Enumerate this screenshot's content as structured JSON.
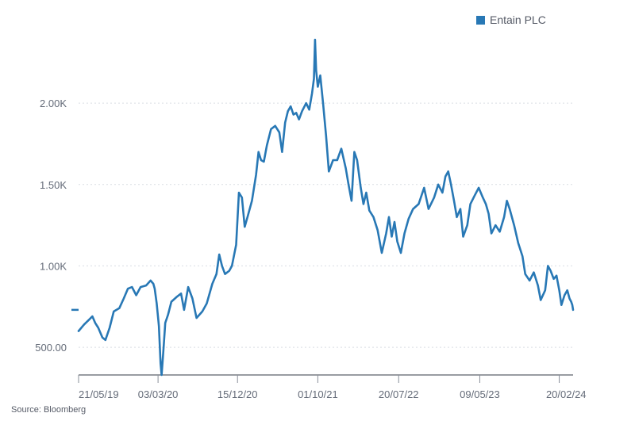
{
  "colors": {
    "series": "#2878b5",
    "price_marker": "#2878b5"
  },
  "legend": {
    "label": "Entain PLC"
  },
  "source": "Source: Bloomberg",
  "chart_data": {
    "type": "line",
    "title": "",
    "xlabel": "",
    "ylabel": "",
    "legend_position": "top-right",
    "grid": "horizontal-dotted",
    "ylim": [
      330,
      2390
    ],
    "yticks": [
      {
        "value": 500,
        "label": "500.00"
      },
      {
        "value": 1000,
        "label": "1.00K"
      },
      {
        "value": 1500,
        "label": "1.50K"
      },
      {
        "value": 2000,
        "label": "2.00K"
      }
    ],
    "xlim": [
      "2019-05-21",
      "2024-04-10"
    ],
    "xticks": [
      {
        "value": "2019-05-21",
        "label": "21/05/19"
      },
      {
        "value": "2020-03-03",
        "label": "03/03/20"
      },
      {
        "value": "2020-12-15",
        "label": "15/12/20"
      },
      {
        "value": "2021-10-01",
        "label": "01/10/21"
      },
      {
        "value": "2022-07-20",
        "label": "20/07/22"
      },
      {
        "value": "2023-05-09",
        "label": "09/05/23"
      },
      {
        "value": "2024-02-20",
        "label": "20/02/24"
      }
    ],
    "last_price_marker": 730,
    "series": [
      {
        "name": "Entain PLC",
        "points": [
          [
            "2019-05-21",
            600
          ],
          [
            "2019-06-10",
            640
          ],
          [
            "2019-06-28",
            670
          ],
          [
            "2019-07-10",
            690
          ],
          [
            "2019-07-20",
            650
          ],
          [
            "2019-07-31",
            620
          ],
          [
            "2019-08-15",
            560
          ],
          [
            "2019-08-26",
            545
          ],
          [
            "2019-09-10",
            620
          ],
          [
            "2019-09-25",
            720
          ],
          [
            "2019-10-15",
            740
          ],
          [
            "2019-10-31",
            800
          ],
          [
            "2019-11-15",
            860
          ],
          [
            "2019-11-30",
            870
          ],
          [
            "2019-12-15",
            820
          ],
          [
            "2019-12-31",
            870
          ],
          [
            "2020-01-20",
            880
          ],
          [
            "2020-02-05",
            910
          ],
          [
            "2020-02-15",
            890
          ],
          [
            "2020-02-20",
            860
          ],
          [
            "2020-02-27",
            770
          ],
          [
            "2020-03-06",
            630
          ],
          [
            "2020-03-12",
            400
          ],
          [
            "2020-03-16",
            330
          ],
          [
            "2020-03-22",
            470
          ],
          [
            "2020-03-29",
            650
          ],
          [
            "2020-04-08",
            700
          ],
          [
            "2020-04-20",
            780
          ],
          [
            "2020-05-10",
            810
          ],
          [
            "2020-05-25",
            830
          ],
          [
            "2020-06-05",
            730
          ],
          [
            "2020-06-20",
            870
          ],
          [
            "2020-07-05",
            800
          ],
          [
            "2020-07-20",
            680
          ],
          [
            "2020-08-10",
            720
          ],
          [
            "2020-08-26",
            770
          ],
          [
            "2020-09-15",
            890
          ],
          [
            "2020-09-30",
            950
          ],
          [
            "2020-10-10",
            1070
          ],
          [
            "2020-10-20",
            1000
          ],
          [
            "2020-10-31",
            950
          ],
          [
            "2020-11-15",
            970
          ],
          [
            "2020-11-25",
            1000
          ],
          [
            "2020-12-10",
            1130
          ],
          [
            "2020-12-20",
            1450
          ],
          [
            "2020-12-31",
            1420
          ],
          [
            "2021-01-10",
            1240
          ],
          [
            "2021-01-20",
            1300
          ],
          [
            "2021-02-05",
            1400
          ],
          [
            "2021-02-20",
            1560
          ],
          [
            "2021-03-01",
            1700
          ],
          [
            "2021-03-10",
            1650
          ],
          [
            "2021-03-20",
            1640
          ],
          [
            "2021-03-31",
            1740
          ],
          [
            "2021-04-15",
            1840
          ],
          [
            "2021-04-30",
            1860
          ],
          [
            "2021-05-15",
            1820
          ],
          [
            "2021-05-25",
            1700
          ],
          [
            "2021-06-05",
            1880
          ],
          [
            "2021-06-15",
            1950
          ],
          [
            "2021-06-25",
            1980
          ],
          [
            "2021-07-05",
            1930
          ],
          [
            "2021-07-15",
            1940
          ],
          [
            "2021-07-25",
            1900
          ],
          [
            "2021-08-05",
            1950
          ],
          [
            "2021-08-20",
            2000
          ],
          [
            "2021-08-31",
            1960
          ],
          [
            "2021-09-10",
            2060
          ],
          [
            "2021-09-17",
            2150
          ],
          [
            "2021-09-21",
            2390
          ],
          [
            "2021-09-25",
            2200
          ],
          [
            "2021-10-01",
            2100
          ],
          [
            "2021-10-10",
            2170
          ],
          [
            "2021-10-20",
            2000
          ],
          [
            "2021-10-31",
            1800
          ],
          [
            "2021-11-10",
            1580
          ],
          [
            "2021-11-25",
            1650
          ],
          [
            "2021-12-10",
            1650
          ],
          [
            "2021-12-25",
            1720
          ],
          [
            "2022-01-10",
            1600
          ],
          [
            "2022-01-20",
            1500
          ],
          [
            "2022-01-31",
            1400
          ],
          [
            "2022-02-10",
            1700
          ],
          [
            "2022-02-20",
            1650
          ],
          [
            "2022-03-05",
            1480
          ],
          [
            "2022-03-15",
            1380
          ],
          [
            "2022-03-25",
            1450
          ],
          [
            "2022-04-05",
            1340
          ],
          [
            "2022-04-20",
            1300
          ],
          [
            "2022-05-05",
            1220
          ],
          [
            "2022-05-20",
            1080
          ],
          [
            "2022-06-05",
            1200
          ],
          [
            "2022-06-15",
            1300
          ],
          [
            "2022-06-25",
            1180
          ],
          [
            "2022-07-05",
            1270
          ],
          [
            "2022-07-15",
            1150
          ],
          [
            "2022-07-28",
            1080
          ],
          [
            "2022-08-10",
            1200
          ],
          [
            "2022-08-25",
            1290
          ],
          [
            "2022-09-10",
            1350
          ],
          [
            "2022-09-30",
            1380
          ],
          [
            "2022-10-20",
            1480
          ],
          [
            "2022-11-05",
            1350
          ],
          [
            "2022-11-25",
            1420
          ],
          [
            "2022-12-10",
            1500
          ],
          [
            "2022-12-25",
            1450
          ],
          [
            "2023-01-05",
            1550
          ],
          [
            "2023-01-15",
            1580
          ],
          [
            "2023-01-25",
            1500
          ],
          [
            "2023-02-05",
            1400
          ],
          [
            "2023-02-15",
            1300
          ],
          [
            "2023-02-28",
            1350
          ],
          [
            "2023-03-10",
            1180
          ],
          [
            "2023-03-25",
            1250
          ],
          [
            "2023-04-05",
            1380
          ],
          [
            "2023-04-20",
            1430
          ],
          [
            "2023-05-05",
            1480
          ],
          [
            "2023-05-20",
            1420
          ],
          [
            "2023-05-31",
            1380
          ],
          [
            "2023-06-10",
            1320
          ],
          [
            "2023-06-20",
            1200
          ],
          [
            "2023-07-05",
            1250
          ],
          [
            "2023-07-20",
            1210
          ],
          [
            "2023-08-05",
            1300
          ],
          [
            "2023-08-15",
            1400
          ],
          [
            "2023-08-25",
            1350
          ],
          [
            "2023-09-10",
            1250
          ],
          [
            "2023-09-25",
            1140
          ],
          [
            "2023-10-10",
            1060
          ],
          [
            "2023-10-20",
            950
          ],
          [
            "2023-11-05",
            910
          ],
          [
            "2023-11-20",
            960
          ],
          [
            "2023-12-05",
            880
          ],
          [
            "2023-12-15",
            790
          ],
          [
            "2023-12-31",
            850
          ],
          [
            "2024-01-10",
            1000
          ],
          [
            "2024-01-20",
            970
          ],
          [
            "2024-01-31",
            920
          ],
          [
            "2024-02-10",
            940
          ],
          [
            "2024-02-20",
            850
          ],
          [
            "2024-02-28",
            760
          ],
          [
            "2024-03-10",
            820
          ],
          [
            "2024-03-20",
            850
          ],
          [
            "2024-03-28",
            800
          ],
          [
            "2024-04-03",
            780
          ],
          [
            "2024-04-07",
            760
          ],
          [
            "2024-04-10",
            730
          ]
        ]
      }
    ]
  }
}
